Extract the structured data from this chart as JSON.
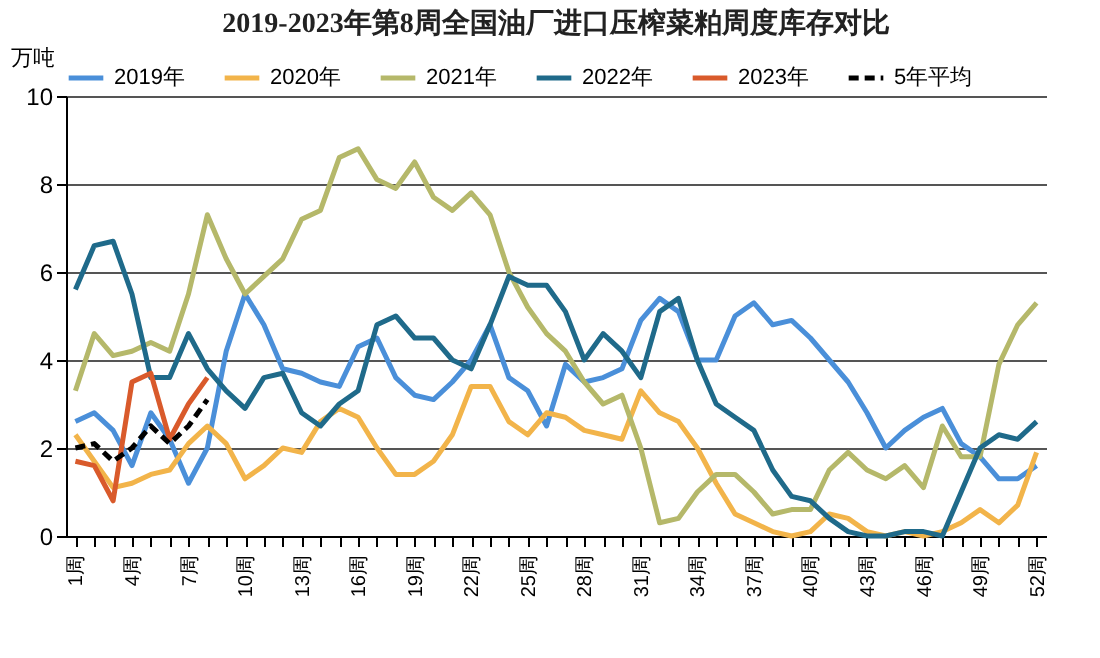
{
  "chart_data": {
    "type": "line",
    "title": "2019-2023年第8周全国油厂进口压榨菜粕周度库存对比",
    "ylabel": "万吨",
    "categories": [
      "1周",
      null,
      null,
      "4周",
      null,
      null,
      "7周",
      null,
      null,
      "10周",
      null,
      null,
      "13周",
      null,
      null,
      "16周",
      null,
      null,
      "19周",
      null,
      null,
      "22周",
      null,
      null,
      "25周",
      null,
      null,
      "28周",
      null,
      null,
      "31周",
      null,
      null,
      "34周",
      null,
      null,
      "37周",
      null,
      null,
      "40周",
      null,
      null,
      "43周",
      null,
      null,
      "46周",
      null,
      null,
      "49周",
      null,
      null,
      "52周"
    ],
    "ylim": [
      0,
      10
    ],
    "yticks": [
      0,
      2,
      4,
      6,
      8,
      10
    ],
    "grid": "y",
    "legend": "top",
    "marker": "none",
    "series": [
      {
        "name": "2019年",
        "color": "#4a8fd9",
        "line_style": "solid",
        "values": [
          2.6,
          2.8,
          2.4,
          1.6,
          2.8,
          2.2,
          1.2,
          2.0,
          4.2,
          5.5,
          4.8,
          3.8,
          3.7,
          3.5,
          3.4,
          4.3,
          4.5,
          3.6,
          3.2,
          3.1,
          3.5,
          4.0,
          4.8,
          3.6,
          3.3,
          2.5,
          3.9,
          3.5,
          3.6,
          3.8,
          4.9,
          5.4,
          5.1,
          4.0,
          4.0,
          5.0,
          5.3,
          4.8,
          4.9,
          4.5,
          4.0,
          3.5,
          2.8,
          2.0,
          2.4,
          2.7,
          2.9,
          2.1,
          1.8,
          1.3,
          1.3,
          1.6
        ]
      },
      {
        "name": "2020年",
        "color": "#f2b44a",
        "line_style": "solid",
        "values": [
          2.3,
          1.7,
          1.1,
          1.2,
          1.4,
          1.5,
          2.1,
          2.5,
          2.1,
          1.3,
          1.6,
          2.0,
          1.9,
          2.6,
          2.9,
          2.7,
          2.0,
          1.4,
          1.4,
          1.7,
          2.3,
          3.4,
          3.4,
          2.6,
          2.3,
          2.8,
          2.7,
          2.4,
          2.3,
          2.2,
          3.3,
          2.8,
          2.6,
          2.0,
          1.2,
          0.5,
          0.3,
          0.1,
          0.0,
          0.1,
          0.5,
          0.4,
          0.1,
          0.0,
          0.1,
          0.0,
          0.1,
          0.3,
          0.6,
          0.3,
          0.7,
          1.9
        ]
      },
      {
        "name": "2021年",
        "color": "#b5b86a",
        "line_style": "solid",
        "values": [
          3.3,
          4.6,
          4.1,
          4.2,
          4.4,
          4.2,
          5.5,
          7.3,
          6.3,
          5.5,
          5.9,
          6.3,
          7.2,
          7.4,
          8.6,
          8.8,
          8.1,
          7.9,
          8.5,
          7.7,
          7.4,
          7.8,
          7.3,
          6.0,
          5.2,
          4.6,
          4.2,
          3.5,
          3.0,
          3.2,
          2.0,
          0.3,
          0.4,
          1.0,
          1.4,
          1.4,
          1.0,
          0.5,
          0.6,
          0.6,
          1.5,
          1.9,
          1.5,
          1.3,
          1.6,
          1.1,
          2.5,
          1.8,
          1.8,
          3.9,
          4.8,
          5.3
        ]
      },
      {
        "name": "2022年",
        "color": "#1f6a8a",
        "line_style": "solid",
        "values": [
          5.6,
          6.6,
          6.7,
          5.5,
          3.6,
          3.6,
          4.6,
          3.8,
          3.3,
          2.9,
          3.6,
          3.7,
          2.8,
          2.5,
          3.0,
          3.3,
          4.8,
          5.0,
          4.5,
          4.5,
          4.0,
          3.8,
          4.8,
          5.9,
          5.7,
          5.7,
          5.1,
          4.0,
          4.6,
          4.2,
          3.6,
          5.1,
          5.4,
          4.0,
          3.0,
          2.7,
          2.4,
          1.5,
          0.9,
          0.8,
          0.4,
          0.1,
          0.0,
          0.0,
          0.1,
          0.1,
          0.0,
          1.0,
          2.0,
          2.3,
          2.2,
          2.6
        ]
      },
      {
        "name": "2023年",
        "color": "#d95a2b",
        "line_style": "solid",
        "values": [
          1.7,
          1.6,
          0.8,
          3.5,
          3.7,
          2.2,
          3.0,
          3.6,
          null,
          null,
          null,
          null,
          null,
          null,
          null,
          null,
          null,
          null,
          null,
          null,
          null,
          null,
          null,
          null,
          null,
          null,
          null,
          null,
          null,
          null,
          null,
          null,
          null,
          null,
          null,
          null,
          null,
          null,
          null,
          null,
          null,
          null,
          null,
          null,
          null,
          null,
          null,
          null,
          null,
          null,
          null,
          null
        ]
      },
      {
        "name": "5年平均",
        "color": "#000000",
        "line_style": "dashed",
        "values": [
          2.0,
          2.1,
          1.7,
          2.0,
          2.5,
          2.1,
          2.5,
          3.1,
          null,
          null,
          null,
          null,
          null,
          null,
          null,
          null,
          null,
          null,
          null,
          null,
          null,
          null,
          null,
          null,
          null,
          null,
          null,
          null,
          null,
          null,
          null,
          null,
          null,
          null,
          null,
          null,
          null,
          null,
          null,
          null,
          null,
          null,
          null,
          null,
          null,
          null,
          null,
          null,
          null,
          null,
          null,
          null
        ]
      }
    ]
  }
}
